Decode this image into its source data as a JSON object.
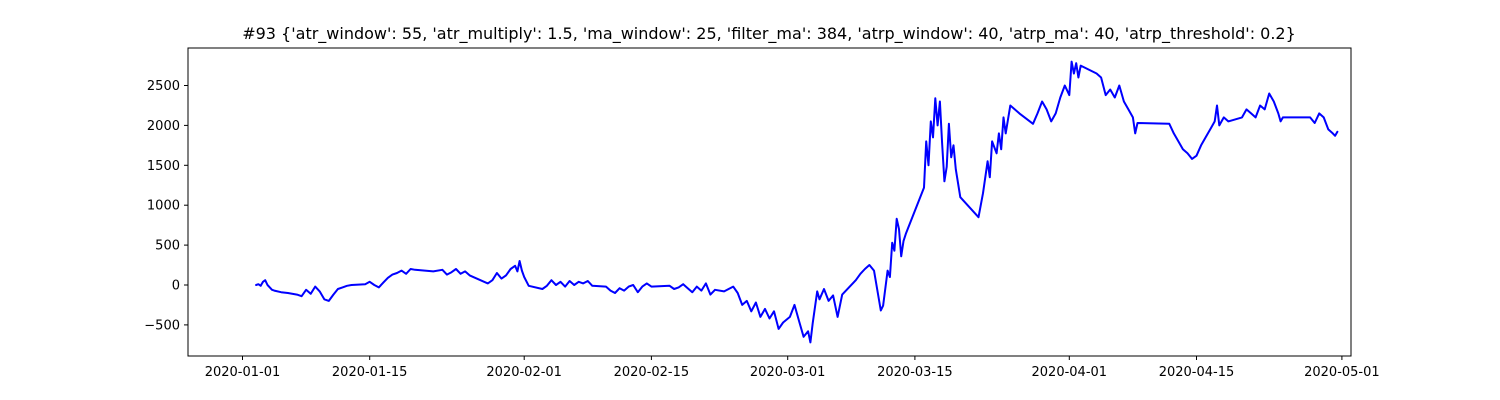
{
  "chart_data": {
    "type": "line",
    "title": "#93 {'atr_window': 55, 'atr_multiply': 1.5, 'ma_window': 25, 'filter_ma': 384, 'atrp_window': 40, 'atrp_ma': 40, 'atrp_threshold': 0.2}",
    "xlabel": "",
    "ylabel": "",
    "grid": false,
    "legend": "none",
    "xlim": [
      "2019-12-26",
      "2020-05-02"
    ],
    "ylim": [
      -890,
      2970
    ],
    "x_ticks": [
      {
        "value": "2020-01-01",
        "label": "2020-01-01"
      },
      {
        "value": "2020-01-15",
        "label": "2020-01-15"
      },
      {
        "value": "2020-02-01",
        "label": "2020-02-01"
      },
      {
        "value": "2020-02-15",
        "label": "2020-02-15"
      },
      {
        "value": "2020-03-01",
        "label": "2020-03-01"
      },
      {
        "value": "2020-03-15",
        "label": "2020-03-15"
      },
      {
        "value": "2020-04-01",
        "label": "2020-04-01"
      },
      {
        "value": "2020-04-15",
        "label": "2020-04-15"
      },
      {
        "value": "2020-05-01",
        "label": "2020-05-01"
      }
    ],
    "y_ticks": [
      {
        "value": -500,
        "label": "−500"
      },
      {
        "value": 0,
        "label": "0"
      },
      {
        "value": 500,
        "label": "500"
      },
      {
        "value": 1000,
        "label": "1000"
      },
      {
        "value": 1500,
        "label": "1500"
      },
      {
        "value": 2000,
        "label": "2000"
      },
      {
        "value": 2500,
        "label": "2500"
      }
    ],
    "series": [
      {
        "color": "#0000ff",
        "points": [
          [
            "2020-01-02 12:00",
            0
          ],
          [
            "2020-01-02 18:00",
            10
          ],
          [
            "2020-01-03 00:00",
            -10
          ],
          [
            "2020-01-03 06:00",
            40
          ],
          [
            "2020-01-03 12:00",
            60
          ],
          [
            "2020-01-03 18:00",
            0
          ],
          [
            "2020-01-04 00:00",
            -30
          ],
          [
            "2020-01-04 06:00",
            -60
          ],
          [
            "2020-01-04 12:00",
            -70
          ],
          [
            "2020-01-05 06:00",
            -90
          ],
          [
            "2020-01-06 00:00",
            -100
          ],
          [
            "2020-01-07 00:00",
            -120
          ],
          [
            "2020-01-07 12:00",
            -140
          ],
          [
            "2020-01-08 00:00",
            -60
          ],
          [
            "2020-01-08 12:00",
            -110
          ],
          [
            "2020-01-09 00:00",
            -20
          ],
          [
            "2020-01-09 12:00",
            -80
          ],
          [
            "2020-01-10 00:00",
            -180
          ],
          [
            "2020-01-10 12:00",
            -200
          ],
          [
            "2020-01-11 00:00",
            -120
          ],
          [
            "2020-01-11 12:00",
            -50
          ],
          [
            "2020-01-12 00:00",
            -30
          ],
          [
            "2020-01-12 12:00",
            -10
          ],
          [
            "2020-01-13 00:00",
            0
          ],
          [
            "2020-01-14 12:00",
            10
          ],
          [
            "2020-01-15 00:00",
            40
          ],
          [
            "2020-01-15 12:00",
            0
          ],
          [
            "2020-01-16 00:00",
            -30
          ],
          [
            "2020-01-16 12:00",
            30
          ],
          [
            "2020-01-17 00:00",
            90
          ],
          [
            "2020-01-17 12:00",
            130
          ],
          [
            "2020-01-18 00:00",
            150
          ],
          [
            "2020-01-18 12:00",
            180
          ],
          [
            "2020-01-19 00:00",
            140
          ],
          [
            "2020-01-19 12:00",
            200
          ],
          [
            "2020-01-20 00:00",
            190
          ],
          [
            "2020-01-22 00:00",
            170
          ],
          [
            "2020-01-23 00:00",
            190
          ],
          [
            "2020-01-23 12:00",
            130
          ],
          [
            "2020-01-24 00:00",
            160
          ],
          [
            "2020-01-24 12:00",
            200
          ],
          [
            "2020-01-25 00:00",
            140
          ],
          [
            "2020-01-25 12:00",
            170
          ],
          [
            "2020-01-26 00:00",
            120
          ],
          [
            "2020-01-28 00:00",
            20
          ],
          [
            "2020-01-28 12:00",
            60
          ],
          [
            "2020-01-29 00:00",
            150
          ],
          [
            "2020-01-29 12:00",
            80
          ],
          [
            "2020-01-30 00:00",
            120
          ],
          [
            "2020-01-30 12:00",
            200
          ],
          [
            "2020-01-31 00:00",
            240
          ],
          [
            "2020-01-31 06:00",
            170
          ],
          [
            "2020-01-31 12:00",
            300
          ],
          [
            "2020-01-31 18:00",
            180
          ],
          [
            "2020-02-01 00:00",
            100
          ],
          [
            "2020-02-01 12:00",
            -10
          ],
          [
            "2020-02-03 00:00",
            -50
          ],
          [
            "2020-02-03 12:00",
            -10
          ],
          [
            "2020-02-04 00:00",
            60
          ],
          [
            "2020-02-04 12:00",
            0
          ],
          [
            "2020-02-05 00:00",
            40
          ],
          [
            "2020-02-05 12:00",
            -20
          ],
          [
            "2020-02-06 00:00",
            50
          ],
          [
            "2020-02-06 12:00",
            0
          ],
          [
            "2020-02-07 00:00",
            40
          ],
          [
            "2020-02-07 12:00",
            20
          ],
          [
            "2020-02-08 00:00",
            50
          ],
          [
            "2020-02-08 12:00",
            -10
          ],
          [
            "2020-02-10 00:00",
            -20
          ],
          [
            "2020-02-10 12:00",
            -70
          ],
          [
            "2020-02-11 00:00",
            -100
          ],
          [
            "2020-02-11 12:00",
            -40
          ],
          [
            "2020-02-12 00:00",
            -70
          ],
          [
            "2020-02-12 12:00",
            -20
          ],
          [
            "2020-02-13 00:00",
            0
          ],
          [
            "2020-02-13 12:00",
            -90
          ],
          [
            "2020-02-14 00:00",
            -20
          ],
          [
            "2020-02-14 12:00",
            20
          ],
          [
            "2020-02-15 00:00",
            -20
          ],
          [
            "2020-02-17 00:00",
            -10
          ],
          [
            "2020-02-17 12:00",
            -50
          ],
          [
            "2020-02-18 00:00",
            -30
          ],
          [
            "2020-02-18 12:00",
            10
          ],
          [
            "2020-02-19 00:00",
            -40
          ],
          [
            "2020-02-19 12:00",
            -90
          ],
          [
            "2020-02-20 00:00",
            -20
          ],
          [
            "2020-02-20 12:00",
            -70
          ],
          [
            "2020-02-21 00:00",
            20
          ],
          [
            "2020-02-21 12:00",
            -120
          ],
          [
            "2020-02-22 00:00",
            -60
          ],
          [
            "2020-02-23 00:00",
            -80
          ],
          [
            "2020-02-24 00:00",
            -20
          ],
          [
            "2020-02-24 12:00",
            -100
          ],
          [
            "2020-02-25 00:00",
            -250
          ],
          [
            "2020-02-25 12:00",
            -200
          ],
          [
            "2020-02-26 00:00",
            -330
          ],
          [
            "2020-02-26 12:00",
            -220
          ],
          [
            "2020-02-27 00:00",
            -400
          ],
          [
            "2020-02-27 12:00",
            -300
          ],
          [
            "2020-02-28 00:00",
            -420
          ],
          [
            "2020-02-28 12:00",
            -330
          ],
          [
            "2020-02-29 00:00",
            -550
          ],
          [
            "2020-02-29 12:00",
            -470
          ],
          [
            "2020-03-01 06:00",
            -400
          ],
          [
            "2020-03-01 18:00",
            -250
          ],
          [
            "2020-03-02 06:00",
            -450
          ],
          [
            "2020-03-02 18:00",
            -650
          ],
          [
            "2020-03-03 06:00",
            -580
          ],
          [
            "2020-03-03 12:00",
            -720
          ],
          [
            "2020-03-03 18:00",
            -480
          ],
          [
            "2020-03-04 06:00",
            -80
          ],
          [
            "2020-03-04 12:00",
            -180
          ],
          [
            "2020-03-05 00:00",
            -50
          ],
          [
            "2020-03-05 12:00",
            -200
          ],
          [
            "2020-03-06 00:00",
            -130
          ],
          [
            "2020-03-06 12:00",
            -400
          ],
          [
            "2020-03-07 00:00",
            -120
          ],
          [
            "2020-03-08 12:00",
            60
          ],
          [
            "2020-03-09 00:00",
            140
          ],
          [
            "2020-03-09 12:00",
            200
          ],
          [
            "2020-03-10 00:00",
            250
          ],
          [
            "2020-03-10 12:00",
            180
          ],
          [
            "2020-03-11 00:00",
            -150
          ],
          [
            "2020-03-11 06:00",
            -320
          ],
          [
            "2020-03-11 12:00",
            -260
          ],
          [
            "2020-03-12 00:00",
            180
          ],
          [
            "2020-03-12 06:00",
            100
          ],
          [
            "2020-03-12 12:00",
            530
          ],
          [
            "2020-03-12 18:00",
            430
          ],
          [
            "2020-03-13 00:00",
            830
          ],
          [
            "2020-03-13 06:00",
            700
          ],
          [
            "2020-03-13 12:00",
            360
          ],
          [
            "2020-03-13 18:00",
            550
          ],
          [
            "2020-03-14 00:00",
            640
          ],
          [
            "2020-03-16 00:00",
            1220
          ],
          [
            "2020-03-16 06:00",
            1800
          ],
          [
            "2020-03-16 12:00",
            1500
          ],
          [
            "2020-03-16 18:00",
            2050
          ],
          [
            "2020-03-17 00:00",
            1850
          ],
          [
            "2020-03-17 06:00",
            2340
          ],
          [
            "2020-03-17 12:00",
            2000
          ],
          [
            "2020-03-17 18:00",
            2300
          ],
          [
            "2020-03-18 00:00",
            1780
          ],
          [
            "2020-03-18 06:00",
            1300
          ],
          [
            "2020-03-18 12:00",
            1480
          ],
          [
            "2020-03-18 18:00",
            2020
          ],
          [
            "2020-03-19 00:00",
            1600
          ],
          [
            "2020-03-19 06:00",
            1750
          ],
          [
            "2020-03-19 12:00",
            1450
          ],
          [
            "2020-03-20 00:00",
            1100
          ],
          [
            "2020-03-22 00:00",
            850
          ],
          [
            "2020-03-22 12:00",
            1150
          ],
          [
            "2020-03-23 00:00",
            1550
          ],
          [
            "2020-03-23 06:00",
            1350
          ],
          [
            "2020-03-23 12:00",
            1800
          ],
          [
            "2020-03-24 00:00",
            1650
          ],
          [
            "2020-03-24 06:00",
            1900
          ],
          [
            "2020-03-24 12:00",
            1700
          ],
          [
            "2020-03-24 18:00",
            2100
          ],
          [
            "2020-03-25 00:00",
            1900
          ],
          [
            "2020-03-25 12:00",
            2250
          ],
          [
            "2020-03-26 00:00",
            2200
          ],
          [
            "2020-03-26 12:00",
            2150
          ],
          [
            "2020-03-28 00:00",
            2020
          ],
          [
            "2020-03-28 12:00",
            2150
          ],
          [
            "2020-03-29 00:00",
            2300
          ],
          [
            "2020-03-29 12:00",
            2200
          ],
          [
            "2020-03-30 00:00",
            2050
          ],
          [
            "2020-03-30 12:00",
            2150
          ],
          [
            "2020-03-31 00:00",
            2350
          ],
          [
            "2020-03-31 12:00",
            2500
          ],
          [
            "2020-04-01 00:00",
            2380
          ],
          [
            "2020-04-01 06:00",
            2800
          ],
          [
            "2020-04-01 12:00",
            2650
          ],
          [
            "2020-04-01 18:00",
            2780
          ],
          [
            "2020-04-02 00:00",
            2600
          ],
          [
            "2020-04-02 06:00",
            2750
          ],
          [
            "2020-04-04 00:00",
            2650
          ],
          [
            "2020-04-04 12:00",
            2600
          ],
          [
            "2020-04-05 00:00",
            2380
          ],
          [
            "2020-04-05 12:00",
            2450
          ],
          [
            "2020-04-06 00:00",
            2350
          ],
          [
            "2020-04-06 12:00",
            2500
          ],
          [
            "2020-04-07 00:00",
            2300
          ],
          [
            "2020-04-07 12:00",
            2200
          ],
          [
            "2020-04-08 00:00",
            2100
          ],
          [
            "2020-04-08 06:00",
            1900
          ],
          [
            "2020-04-08 12:00",
            2030
          ],
          [
            "2020-04-12 00:00",
            2020
          ],
          [
            "2020-04-12 12:00",
            1900
          ],
          [
            "2020-04-13 00:00",
            1800
          ],
          [
            "2020-04-13 12:00",
            1700
          ],
          [
            "2020-04-14 00:00",
            1650
          ],
          [
            "2020-04-14 12:00",
            1580
          ],
          [
            "2020-04-15 00:00",
            1620
          ],
          [
            "2020-04-15 12:00",
            1750
          ],
          [
            "2020-04-16 00:00",
            1850
          ],
          [
            "2020-04-16 12:00",
            1950
          ],
          [
            "2020-04-17 00:00",
            2050
          ],
          [
            "2020-04-17 06:00",
            2250
          ],
          [
            "2020-04-17 12:00",
            2000
          ],
          [
            "2020-04-18 00:00",
            2100
          ],
          [
            "2020-04-18 12:00",
            2050
          ],
          [
            "2020-04-20 00:00",
            2100
          ],
          [
            "2020-04-20 12:00",
            2200
          ],
          [
            "2020-04-21 00:00",
            2150
          ],
          [
            "2020-04-21 12:00",
            2100
          ],
          [
            "2020-04-22 00:00",
            2250
          ],
          [
            "2020-04-22 12:00",
            2200
          ],
          [
            "2020-04-23 00:00",
            2400
          ],
          [
            "2020-04-23 12:00",
            2300
          ],
          [
            "2020-04-24 00:00",
            2150
          ],
          [
            "2020-04-24 06:00",
            2050
          ],
          [
            "2020-04-24 12:00",
            2100
          ],
          [
            "2020-04-27 12:00",
            2100
          ],
          [
            "2020-04-28 00:00",
            2030
          ],
          [
            "2020-04-28 12:00",
            2150
          ],
          [
            "2020-04-29 00:00",
            2100
          ],
          [
            "2020-04-29 12:00",
            1950
          ],
          [
            "2020-04-30 00:00",
            1900
          ],
          [
            "2020-04-30 06:00",
            1870
          ],
          [
            "2020-04-30 12:00",
            1920
          ]
        ]
      }
    ]
  }
}
